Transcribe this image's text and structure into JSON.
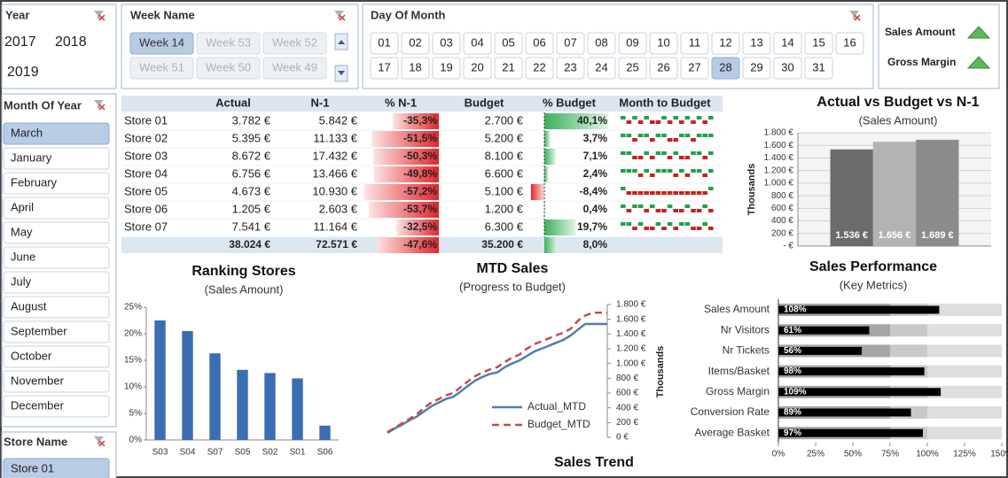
{
  "slicers": {
    "year": {
      "title": "Year",
      "items": [
        "2017",
        "2018",
        "2019"
      ]
    },
    "week_name": {
      "title": "Week Name",
      "items": [
        "Week 14",
        "Week 53",
        "Week 52",
        "Week 51",
        "Week 50",
        "Week 49"
      ],
      "selected": 0
    },
    "day_of_month": {
      "title": "Day Of Month",
      "items": [
        "01",
        "02",
        "03",
        "04",
        "05",
        "06",
        "07",
        "08",
        "09",
        "10",
        "11",
        "12",
        "13",
        "14",
        "15",
        "16",
        "17",
        "18",
        "19",
        "20",
        "21",
        "22",
        "23",
        "24",
        "25",
        "26",
        "27",
        "28",
        "29",
        "30",
        "31"
      ],
      "selected": 27
    },
    "metrics": {
      "items": [
        "Sales Amount",
        "Gross Margin"
      ]
    },
    "month_of_year": {
      "title": "Month Of Year",
      "items": [
        "March",
        "January",
        "February",
        "April",
        "May",
        "June",
        "July",
        "August",
        "September",
        "October",
        "November",
        "December"
      ],
      "selected": 0
    },
    "store_name": {
      "title": "Store Name",
      "items": [
        "Store 01"
      ],
      "selected": 0
    }
  },
  "table": {
    "columns": [
      "Actual",
      "N-1",
      "% N-1",
      "Budget",
      "% Budget",
      "Month to Budget"
    ],
    "rows": [
      {
        "store": "Store 01",
        "actual": "3.782 €",
        "n1": "5.842 €",
        "pct_n1": {
          "value": -35.3,
          "label": "-35,3%"
        },
        "budget": "2.700 €",
        "pct_budget": {
          "value": 40.1,
          "label": "40,1%"
        },
        "month_to_budget": [
          1,
          -1,
          1,
          -1,
          1,
          -1,
          -1,
          1,
          -1,
          1,
          -1,
          1,
          -1,
          1,
          -1,
          1
        ]
      },
      {
        "store": "Store 02",
        "actual": "5.395 €",
        "n1": "11.133 €",
        "pct_n1": {
          "value": -51.5,
          "label": "-51,5%"
        },
        "budget": "5.200 €",
        "pct_budget": {
          "value": 3.7,
          "label": "3,7%"
        },
        "month_to_budget": [
          1,
          1,
          -1,
          1,
          1,
          -1,
          1,
          1,
          -1,
          -1,
          1,
          1,
          -1,
          1,
          1,
          1
        ]
      },
      {
        "store": "Store 03",
        "actual": "8.672 €",
        "n1": "17.432 €",
        "pct_n1": {
          "value": -50.3,
          "label": "-50,3%"
        },
        "budget": "8.100 €",
        "pct_budget": {
          "value": 7.1,
          "label": "7,1%"
        },
        "month_to_budget": [
          1,
          1,
          -1,
          -1,
          1,
          -1,
          1,
          1,
          -1,
          1,
          -1,
          -1,
          1,
          1,
          -1,
          1
        ]
      },
      {
        "store": "Store 04",
        "actual": "6.756 €",
        "n1": "13.466 €",
        "pct_n1": {
          "value": -49.8,
          "label": "-49,8%"
        },
        "budget": "6.600 €",
        "pct_budget": {
          "value": 2.4,
          "label": "2,4%"
        },
        "month_to_budget": [
          1,
          1,
          1,
          -1,
          1,
          -1,
          1,
          1,
          1,
          -1,
          1,
          -1,
          1,
          1,
          -1,
          1
        ]
      },
      {
        "store": "Store 05",
        "actual": "4.673 €",
        "n1": "10.930 €",
        "pct_n1": {
          "value": -57.2,
          "label": "-57,2%"
        },
        "budget": "5.100 €",
        "pct_budget": {
          "value": -8.4,
          "label": "-8,4%"
        },
        "month_to_budget": [
          1,
          -1,
          -1,
          -1,
          -1,
          -1,
          -1,
          -1,
          -1,
          -1,
          -1,
          -1,
          -1,
          -1,
          -1,
          1
        ]
      },
      {
        "store": "Store 06",
        "actual": "1.205 €",
        "n1": "2.603 €",
        "pct_n1": {
          "value": -53.7,
          "label": "-53,7%"
        },
        "budget": "1.200 €",
        "pct_budget": {
          "value": 0.4,
          "label": "0,4%"
        },
        "month_to_budget": [
          1,
          -1,
          1,
          1,
          -1,
          1,
          -1,
          -1,
          1,
          -1,
          -1,
          1,
          -1,
          -1,
          1,
          -1
        ]
      },
      {
        "store": "Store 07",
        "actual": "7.541 €",
        "n1": "11.164 €",
        "pct_n1": {
          "value": -32.5,
          "label": "-32,5%"
        },
        "budget": "6.300 €",
        "pct_budget": {
          "value": 19.7,
          "label": "19,7%"
        },
        "month_to_budget": [
          1,
          1,
          -1,
          1,
          -1,
          -1,
          1,
          -1,
          1,
          -1,
          1,
          1,
          -1,
          -1,
          1,
          -1
        ]
      }
    ],
    "total": {
      "actual": "38.024 €",
      "n1": "72.571 €",
      "pct_n1": {
        "value": -47.6,
        "label": "-47,6%"
      },
      "budget": "35.200 €",
      "pct_budget": {
        "value": 8.0,
        "label": "8,0%"
      }
    }
  },
  "chart_data": [
    {
      "type": "bar",
      "title": "Actual vs Budget vs N-1",
      "subtitle": "(Sales Amount)",
      "y_label": "Thousands",
      "categories": [
        null
      ],
      "series": [
        {
          "color": "#6b6b6b",
          "values": [
            1536
          ],
          "value_labels": [
            "1.536 €"
          ]
        },
        {
          "color": "#b3b3b3",
          "values": [
            1656
          ],
          "value_labels": [
            "1.656 €"
          ]
        },
        {
          "color": "#8c8c8c",
          "values": [
            1689
          ],
          "value_labels": [
            "1.689 €"
          ]
        }
      ],
      "ylim": [
        0,
        1800
      ],
      "yticks": [
        {
          "value": 0,
          "label": "- €"
        },
        {
          "value": 200,
          "label": "200 €"
        },
        {
          "value": 400,
          "label": "400 €"
        },
        {
          "value": 600,
          "label": "600 €"
        },
        {
          "value": 800,
          "label": "800 €"
        },
        {
          "value": 1000,
          "label": "1.000 €"
        },
        {
          "value": 1200,
          "label": "1.200 €"
        },
        {
          "value": 1400,
          "label": "1.400 €"
        },
        {
          "value": 1600,
          "label": "1.600 €"
        },
        {
          "value": 1800,
          "label": "1.800 €"
        }
      ],
      "grid": true
    },
    {
      "type": "bar",
      "title": "Ranking Stores",
      "subtitle": "(Sales Amount)",
      "categories": [
        "S03",
        "S04",
        "S07",
        "S05",
        "S02",
        "S01",
        "S06"
      ],
      "values": [
        22.5,
        20.5,
        16.3,
        13.2,
        12.6,
        11.6,
        2.7
      ],
      "color": "#3b6db3",
      "ylim": [
        0,
        25
      ],
      "yticks": [
        {
          "value": 0,
          "label": "0%"
        },
        {
          "value": 5,
          "label": "5%"
        },
        {
          "value": 10,
          "label": "10%"
        },
        {
          "value": 15,
          "label": "15%"
        },
        {
          "value": 20,
          "label": "20%"
        },
        {
          "value": 25,
          "label": "25%"
        }
      ],
      "grid": false
    },
    {
      "type": "line",
      "title": "MTD Sales",
      "subtitle": "(Progress to Budget)",
      "y2_label": "Thousands",
      "series": [
        {
          "name": "Actual_MTD",
          "color": "#4f7fae",
          "line_style": "solid",
          "axis": "y2",
          "values": [
            60,
            120,
            170,
            230,
            280,
            350,
            420,
            470,
            520,
            550,
            620,
            700,
            770,
            820,
            860,
            880,
            950,
            1000,
            1040,
            1100,
            1160,
            1200,
            1240,
            1280,
            1320,
            1380,
            1460,
            1536,
            1536,
            1536,
            1536
          ]
        },
        {
          "name": "Budget_MTD",
          "color": "#c0504d",
          "line_style": "dashed",
          "axis": "y2",
          "values": [
            70,
            130,
            190,
            250,
            310,
            400,
            470,
            520,
            570,
            600,
            680,
            760,
            830,
            880,
            920,
            950,
            1020,
            1080,
            1120,
            1200,
            1260,
            1300,
            1340,
            1380,
            1420,
            1470,
            1580,
            1650,
            1689,
            1689,
            1689
          ]
        }
      ],
      "y2lim": [
        0,
        1800
      ],
      "y2ticks": [
        {
          "value": 0,
          "label": "0 €"
        },
        {
          "value": 200,
          "label": "200 €"
        },
        {
          "value": 400,
          "label": "400 €"
        },
        {
          "value": 600,
          "label": "600 €"
        },
        {
          "value": 800,
          "label": "800 €"
        },
        {
          "value": 1000,
          "label": "1.000 €"
        },
        {
          "value": 1200,
          "label": "1.200 €"
        },
        {
          "value": 1400,
          "label": "1.400 €"
        },
        {
          "value": 1600,
          "label": "1.600 €"
        },
        {
          "value": 1800,
          "label": "1.800 €"
        }
      ],
      "legend": "lower right"
    },
    {
      "type": "bullet",
      "title": "Sales Performance",
      "subtitle": "(Key Metrics)",
      "categories": [
        "Sales Amount",
        "Nr Visitors",
        "Nr Tickets",
        "Items/Basket",
        "Gross Margin",
        "Conversion Rate",
        "Average Basket"
      ],
      "values": [
        108,
        61,
        56,
        98,
        109,
        89,
        97
      ],
      "value_labels": [
        "108%",
        "61%",
        "56%",
        "98%",
        "109%",
        "89%",
        "97%"
      ],
      "color": "#000000",
      "bands": [
        {
          "to": 75,
          "color": "#a6a6a6"
        },
        {
          "to": 100,
          "color": "#c9c9c9"
        },
        {
          "to": 150,
          "color": "#dedede"
        }
      ],
      "xlim": [
        0,
        150
      ],
      "xticks": [
        {
          "value": 0,
          "label": "0%"
        },
        {
          "value": 25,
          "label": "25%"
        },
        {
          "value": 50,
          "label": "50%"
        },
        {
          "value": 75,
          "label": "75%"
        },
        {
          "value": 100,
          "label": "100%"
        },
        {
          "value": 125,
          "label": "125%"
        },
        {
          "value": 150,
          "label": "150%"
        }
      ]
    }
  ],
  "sales_trend_title": "Sales Trend"
}
